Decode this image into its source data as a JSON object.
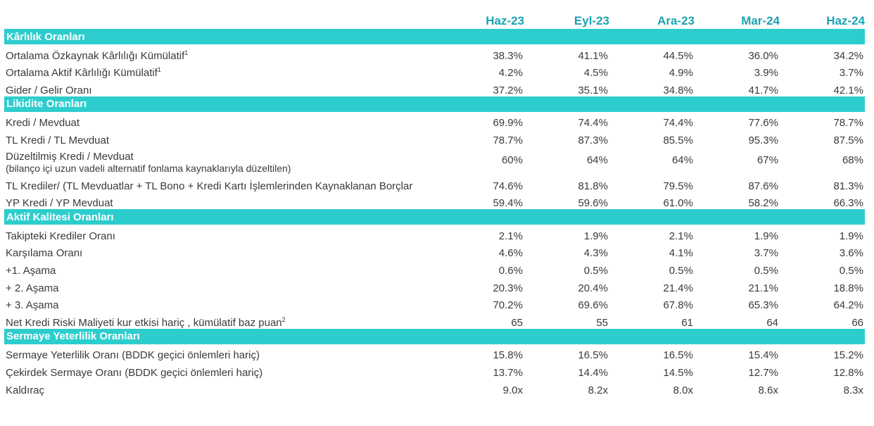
{
  "columns": [
    "Haz-23",
    "Eyl-23",
    "Ara-23",
    "Mar-24",
    "Haz-24"
  ],
  "sections": [
    {
      "title": "Kârlılık Oranları",
      "rows": [
        {
          "label": "Ortalama Özkaynak Kârlılığı Kümülatif",
          "sup": "1",
          "values": [
            "38.3%",
            "41.1%",
            "44.5%",
            "36.0%",
            "34.2%"
          ]
        },
        {
          "label": "Ortalama Aktif Kârlılığı Kümülatif",
          "sup": "1",
          "values": [
            "4.2%",
            "4.5%",
            "4.9%",
            "3.9%",
            "3.7%"
          ]
        },
        {
          "label": "Gider / Gelir Oranı",
          "values": [
            "37.2%",
            "35.1%",
            "34.8%",
            "41.7%",
            "42.1%"
          ]
        }
      ]
    },
    {
      "title": "Likidite Oranları",
      "rows": [
        {
          "label": "Kredi / Mevduat",
          "values": [
            "69.9%",
            "74.4%",
            "74.4%",
            "77.6%",
            "78.7%"
          ]
        },
        {
          "label": "TL Kredi / TL Mevduat",
          "values": [
            "78.7%",
            "87.3%",
            "85.5%",
            "95.3%",
            "87.5%"
          ]
        },
        {
          "label": "Düzeltilmiş Kredi / Mevduat",
          "sublabel": "(bilanço içi uzun vadeli alternatif fonlama kaynaklarıyla düzeltilen)",
          "values": [
            "60%",
            "64%",
            "64%",
            "67%",
            "68%"
          ]
        },
        {
          "label": "TL Krediler/ (TL Mevduatlar + TL Bono + Kredi Kartı İşlemlerinden Kaynaklanan Borçlar",
          "values": [
            "74.6%",
            "81.8%",
            "79.5%",
            "87.6%",
            "81.3%"
          ]
        },
        {
          "label": "YP Kredi / YP Mevduat",
          "values": [
            "59.4%",
            "59.6%",
            "61.0%",
            "58.2%",
            "66.3%"
          ]
        }
      ]
    },
    {
      "title": "Aktif Kalitesi Oranları",
      "rows": [
        {
          "label": "Takipteki Krediler Oranı",
          "values": [
            "2.1%",
            "1.9%",
            "2.1%",
            "1.9%",
            "1.9%"
          ]
        },
        {
          "label": "Karşılama Oranı",
          "values": [
            "4.6%",
            "4.3%",
            "4.1%",
            "3.7%",
            "3.6%"
          ]
        },
        {
          "label": " +1. Aşama",
          "values": [
            "0.6%",
            "0.5%",
            "0.5%",
            "0.5%",
            "0.5%"
          ]
        },
        {
          "label": "+ 2. Aşama",
          "values": [
            "20.3%",
            "20.4%",
            "21.4%",
            "21.1%",
            "18.8%"
          ]
        },
        {
          "label": " + 3. Aşama",
          "values": [
            "70.2%",
            "69.6%",
            "67.8%",
            "65.3%",
            "64.2%"
          ]
        },
        {
          "label": "Net Kredi Riski Maliyeti kur etkisi hariç , kümülatif baz puan",
          "sup": "2",
          "values": [
            "65",
            "55",
            "61",
            "64",
            "66"
          ]
        }
      ]
    },
    {
      "title": "Sermaye Yeterlilik Oranları",
      "rows": [
        {
          "label": "Sermaye Yeterlilik Oranı (BDDK geçici önlemleri hariç)",
          "values": [
            "15.8%",
            "16.5%",
            "16.5%",
            "15.4%",
            "15.2%"
          ]
        },
        {
          "label": "Çekirdek Sermaye Oranı (BDDK geçici önlemleri hariç)",
          "values": [
            "13.7%",
            "14.4%",
            "14.5%",
            "12.7%",
            "12.8%"
          ]
        },
        {
          "label": "Kaldıraç",
          "values": [
            "9.0x",
            "8.2x",
            "8.0x",
            "8.6x",
            "8.3x"
          ]
        }
      ]
    }
  ]
}
